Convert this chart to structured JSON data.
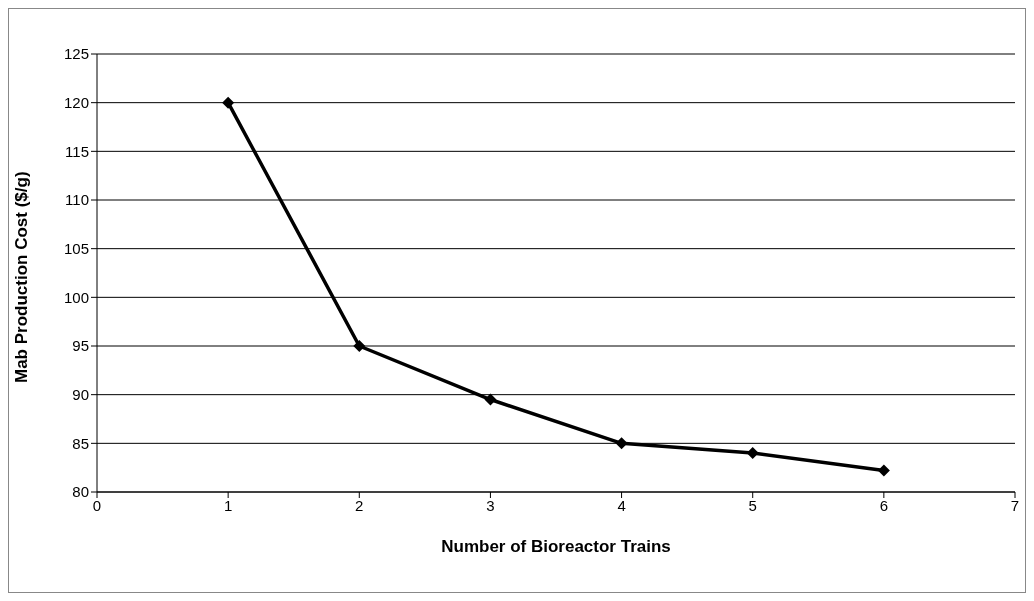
{
  "chart_data": {
    "type": "line",
    "xlabel": "Number of Bioreactor Trains",
    "ylabel": "Mab Production Cost ($/g)",
    "x": [
      1,
      2,
      3,
      4,
      5,
      6
    ],
    "series": [
      {
        "color": "#000000",
        "values": [
          120,
          95,
          89.5,
          85,
          84,
          82.2
        ]
      }
    ],
    "xlim": [
      0,
      7
    ],
    "xticks": [
      0,
      1,
      2,
      3,
      4,
      5,
      6,
      7
    ],
    "ylim": [
      80,
      125
    ],
    "yticks": [
      80,
      85,
      90,
      95,
      100,
      105,
      110,
      115,
      120,
      125
    ],
    "grid": "y",
    "marker": "diamond",
    "line_style": "solid",
    "legend": false
  }
}
